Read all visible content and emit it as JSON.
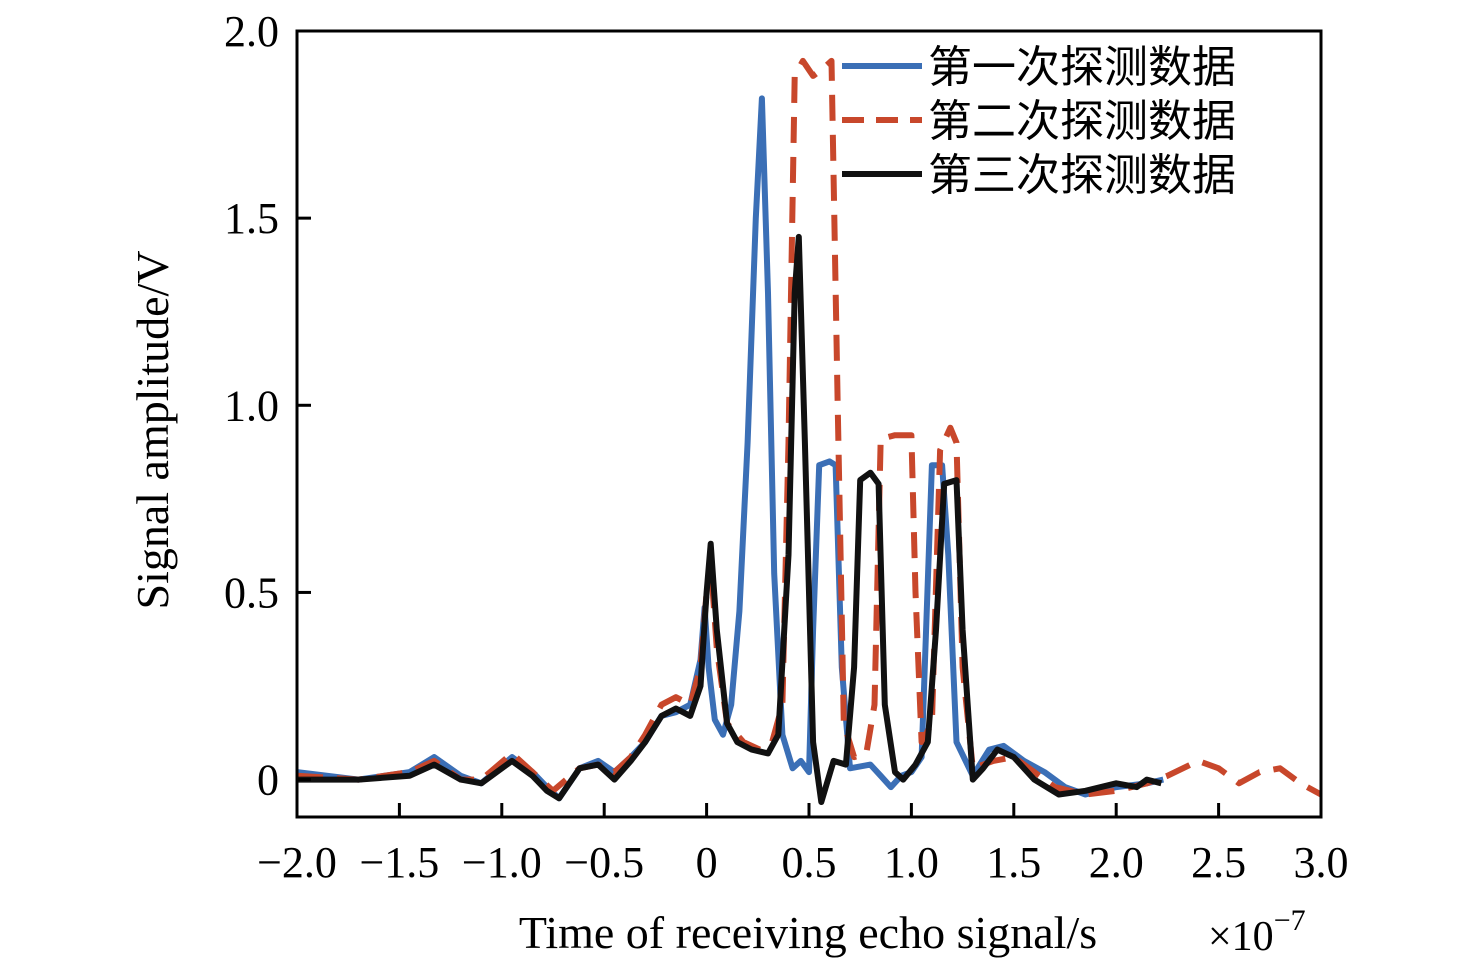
{
  "chart_data": {
    "type": "line",
    "xlabel": "Time of receiving echo signal/s",
    "x_exponent_label": "×10",
    "x_exponent_power": "−7",
    "ylabel": "Signal amplitude/V",
    "xlim": [
      -2.0,
      3.0
    ],
    "ylim": [
      -0.1,
      2.0
    ],
    "xticks": [
      -2.0,
      -1.5,
      -1.0,
      -0.5,
      0,
      0.5,
      1.0,
      1.5,
      2.0,
      2.5,
      3.0
    ],
    "xtick_labels": [
      "−2.0",
      "−1.5",
      "−1.0",
      "−0.5",
      "0",
      "0.5",
      "1.0",
      "1.5",
      "2.0",
      "2.5",
      "3.0"
    ],
    "yticks": [
      0,
      0.5,
      1.0,
      1.5,
      2.0
    ],
    "ytick_labels": [
      "0",
      "0.5",
      "1.0",
      "1.5",
      "2.0"
    ],
    "grid": false,
    "legend_position": "top-right",
    "series": [
      {
        "name": "第一次探测数据",
        "color": "#3b6fb6",
        "style": "solid",
        "points": [
          [
            -2.0,
            0.02
          ],
          [
            -1.7,
            0.0
          ],
          [
            -1.45,
            0.02
          ],
          [
            -1.33,
            0.06
          ],
          [
            -1.2,
            0.01
          ],
          [
            -1.1,
            -0.01
          ],
          [
            -0.95,
            0.06
          ],
          [
            -0.85,
            0.02
          ],
          [
            -0.78,
            -0.02
          ],
          [
            -0.72,
            -0.05
          ],
          [
            -0.62,
            0.03
          ],
          [
            -0.53,
            0.05
          ],
          [
            -0.45,
            0.02
          ],
          [
            -0.37,
            0.06
          ],
          [
            -0.3,
            0.1
          ],
          [
            -0.22,
            0.17
          ],
          [
            -0.15,
            0.18
          ],
          [
            -0.08,
            0.2
          ],
          [
            -0.03,
            0.32
          ],
          [
            -0.01,
            0.46
          ],
          [
            0.01,
            0.3
          ],
          [
            0.04,
            0.16
          ],
          [
            0.08,
            0.12
          ],
          [
            0.12,
            0.2
          ],
          [
            0.16,
            0.45
          ],
          [
            0.2,
            0.9
          ],
          [
            0.24,
            1.5
          ],
          [
            0.27,
            1.82
          ],
          [
            0.3,
            1.3
          ],
          [
            0.33,
            0.55
          ],
          [
            0.37,
            0.12
          ],
          [
            0.42,
            0.03
          ],
          [
            0.46,
            0.05
          ],
          [
            0.5,
            0.02
          ],
          [
            0.52,
            0.4
          ],
          [
            0.55,
            0.84
          ],
          [
            0.6,
            0.85
          ],
          [
            0.63,
            0.84
          ],
          [
            0.66,
            0.3
          ],
          [
            0.7,
            0.03
          ],
          [
            0.8,
            0.04
          ],
          [
            0.85,
            0.01
          ],
          [
            0.9,
            -0.02
          ],
          [
            0.95,
            0.01
          ],
          [
            1.0,
            0.02
          ],
          [
            1.05,
            0.06
          ],
          [
            1.1,
            0.84
          ],
          [
            1.15,
            0.84
          ],
          [
            1.18,
            0.6
          ],
          [
            1.22,
            0.1
          ],
          [
            1.3,
            0.01
          ],
          [
            1.38,
            0.08
          ],
          [
            1.45,
            0.09
          ],
          [
            1.55,
            0.05
          ],
          [
            1.65,
            0.02
          ],
          [
            1.75,
            -0.02
          ],
          [
            1.85,
            -0.04
          ],
          [
            2.0,
            -0.02
          ],
          [
            2.15,
            -0.01
          ],
          [
            2.23,
            0.0
          ]
        ]
      },
      {
        "name": "第二次探测数据",
        "color": "#c8472b",
        "style": "dashed",
        "points": [
          [
            -2.0,
            0.01
          ],
          [
            -1.7,
            0.0
          ],
          [
            -1.45,
            0.02
          ],
          [
            -1.33,
            0.05
          ],
          [
            -1.2,
            0.0
          ],
          [
            -1.1,
            0.0
          ],
          [
            -0.95,
            0.07
          ],
          [
            -0.85,
            0.02
          ],
          [
            -0.75,
            -0.03
          ],
          [
            -0.62,
            0.03
          ],
          [
            -0.53,
            0.04
          ],
          [
            -0.45,
            0.02
          ],
          [
            -0.37,
            0.06
          ],
          [
            -0.3,
            0.12
          ],
          [
            -0.22,
            0.2
          ],
          [
            -0.15,
            0.22
          ],
          [
            -0.08,
            0.2
          ],
          [
            -0.03,
            0.3
          ],
          [
            0.0,
            0.5
          ],
          [
            0.02,
            0.58
          ],
          [
            0.05,
            0.35
          ],
          [
            0.1,
            0.15
          ],
          [
            0.18,
            0.1
          ],
          [
            0.26,
            0.08
          ],
          [
            0.32,
            0.1
          ],
          [
            0.37,
            0.2
          ],
          [
            0.4,
            0.9
          ],
          [
            0.43,
            1.88
          ],
          [
            0.47,
            1.92
          ],
          [
            0.52,
            1.88
          ],
          [
            0.57,
            1.9
          ],
          [
            0.61,
            1.92
          ],
          [
            0.64,
            1.0
          ],
          [
            0.67,
            0.15
          ],
          [
            0.72,
            0.06
          ],
          [
            0.78,
            0.07
          ],
          [
            0.82,
            0.2
          ],
          [
            0.85,
            0.91
          ],
          [
            0.92,
            0.92
          ],
          [
            1.0,
            0.92
          ],
          [
            1.02,
            0.5
          ],
          [
            1.05,
            0.1
          ],
          [
            1.1,
            0.15
          ],
          [
            1.14,
            0.88
          ],
          [
            1.19,
            0.94
          ],
          [
            1.22,
            0.9
          ],
          [
            1.25,
            0.3
          ],
          [
            1.3,
            0.03
          ],
          [
            1.4,
            0.05
          ],
          [
            1.5,
            0.06
          ],
          [
            1.6,
            0.02
          ],
          [
            1.7,
            -0.02
          ],
          [
            1.85,
            -0.04
          ],
          [
            2.0,
            -0.03
          ],
          [
            2.15,
            -0.01
          ],
          [
            2.25,
            0.01
          ],
          [
            2.4,
            0.05
          ],
          [
            2.5,
            0.03
          ],
          [
            2.6,
            -0.01
          ],
          [
            2.7,
            0.02
          ],
          [
            2.8,
            0.03
          ],
          [
            2.9,
            -0.01
          ],
          [
            3.0,
            -0.04
          ]
        ]
      },
      {
        "name": "第三次探测数据",
        "color": "#111111",
        "style": "solid",
        "points": [
          [
            -2.0,
            0.0
          ],
          [
            -1.7,
            0.0
          ],
          [
            -1.45,
            0.01
          ],
          [
            -1.33,
            0.04
          ],
          [
            -1.2,
            0.0
          ],
          [
            -1.1,
            -0.01
          ],
          [
            -0.95,
            0.05
          ],
          [
            -0.85,
            0.01
          ],
          [
            -0.78,
            -0.03
          ],
          [
            -0.72,
            -0.05
          ],
          [
            -0.62,
            0.03
          ],
          [
            -0.53,
            0.04
          ],
          [
            -0.45,
            0.0
          ],
          [
            -0.37,
            0.05
          ],
          [
            -0.3,
            0.1
          ],
          [
            -0.22,
            0.17
          ],
          [
            -0.15,
            0.19
          ],
          [
            -0.08,
            0.17
          ],
          [
            -0.03,
            0.25
          ],
          [
            0.0,
            0.5
          ],
          [
            0.02,
            0.63
          ],
          [
            0.05,
            0.4
          ],
          [
            0.1,
            0.15
          ],
          [
            0.15,
            0.1
          ],
          [
            0.22,
            0.08
          ],
          [
            0.3,
            0.07
          ],
          [
            0.35,
            0.12
          ],
          [
            0.4,
            0.6
          ],
          [
            0.43,
            1.3
          ],
          [
            0.45,
            1.45
          ],
          [
            0.48,
            0.9
          ],
          [
            0.52,
            0.1
          ],
          [
            0.56,
            -0.06
          ],
          [
            0.62,
            0.05
          ],
          [
            0.68,
            0.04
          ],
          [
            0.72,
            0.3
          ],
          [
            0.75,
            0.8
          ],
          [
            0.8,
            0.82
          ],
          [
            0.84,
            0.79
          ],
          [
            0.87,
            0.2
          ],
          [
            0.92,
            0.02
          ],
          [
            0.96,
            0.0
          ],
          [
            1.02,
            0.04
          ],
          [
            1.08,
            0.1
          ],
          [
            1.12,
            0.4
          ],
          [
            1.16,
            0.79
          ],
          [
            1.22,
            0.8
          ],
          [
            1.25,
            0.4
          ],
          [
            1.3,
            0.0
          ],
          [
            1.35,
            0.03
          ],
          [
            1.42,
            0.08
          ],
          [
            1.5,
            0.06
          ],
          [
            1.6,
            0.0
          ],
          [
            1.72,
            -0.04
          ],
          [
            1.85,
            -0.03
          ],
          [
            2.0,
            -0.01
          ],
          [
            2.1,
            -0.02
          ],
          [
            2.15,
            0.0
          ],
          [
            2.22,
            -0.01
          ]
        ]
      }
    ]
  }
}
